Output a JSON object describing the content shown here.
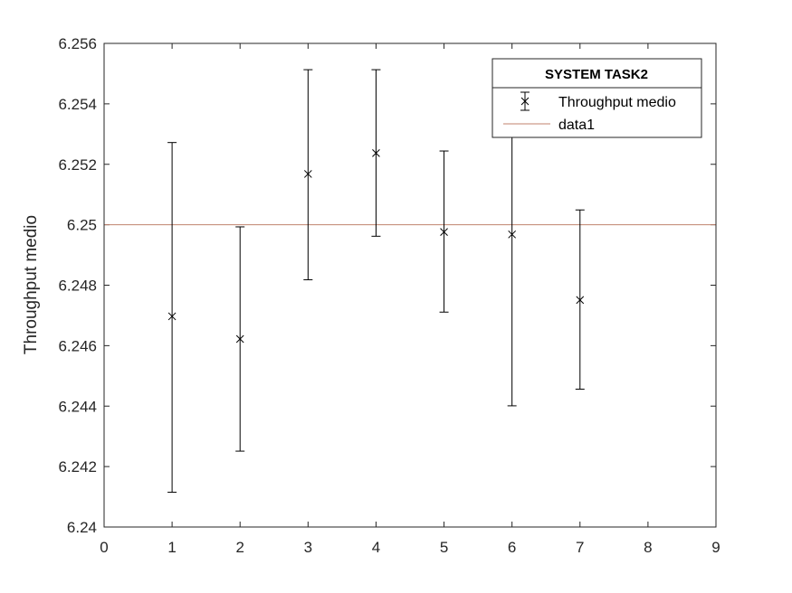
{
  "chart_data": {
    "type": "scatter",
    "title": "",
    "xlabel": "",
    "ylabel": "Throughput medio",
    "xlim": [
      0,
      9
    ],
    "ylim": [
      6.24,
      6.256
    ],
    "xticks": [
      "0",
      "1",
      "2",
      "3",
      "4",
      "5",
      "6",
      "7",
      "8",
      "9"
    ],
    "yticks": [
      "6.24",
      "6.242",
      "6.244",
      "6.246",
      "6.248",
      "6.25",
      "6.252",
      "6.254",
      "6.256"
    ],
    "grid": false,
    "series": [
      {
        "name": "Throughput medio",
        "kind": "errorbar",
        "marker": "x",
        "color": "#000000",
        "x": [
          1,
          2,
          3,
          4,
          5,
          6,
          7
        ],
        "y": [
          6.24697,
          6.24622,
          6.25168,
          6.25237,
          6.24976,
          6.24968,
          6.24751
        ],
        "lower": [
          6.24115,
          6.24251,
          6.24818,
          6.24962,
          6.24711,
          6.24401,
          6.24456
        ],
        "upper": [
          6.25272,
          6.24993,
          6.25513,
          6.25513,
          6.25244,
          6.2532,
          6.25049
        ]
      },
      {
        "name": "data1",
        "kind": "hline",
        "color": "#c0826e",
        "y": 6.25
      }
    ],
    "legend": {
      "title": "SYSTEM TASK2",
      "position": "top-right"
    }
  }
}
